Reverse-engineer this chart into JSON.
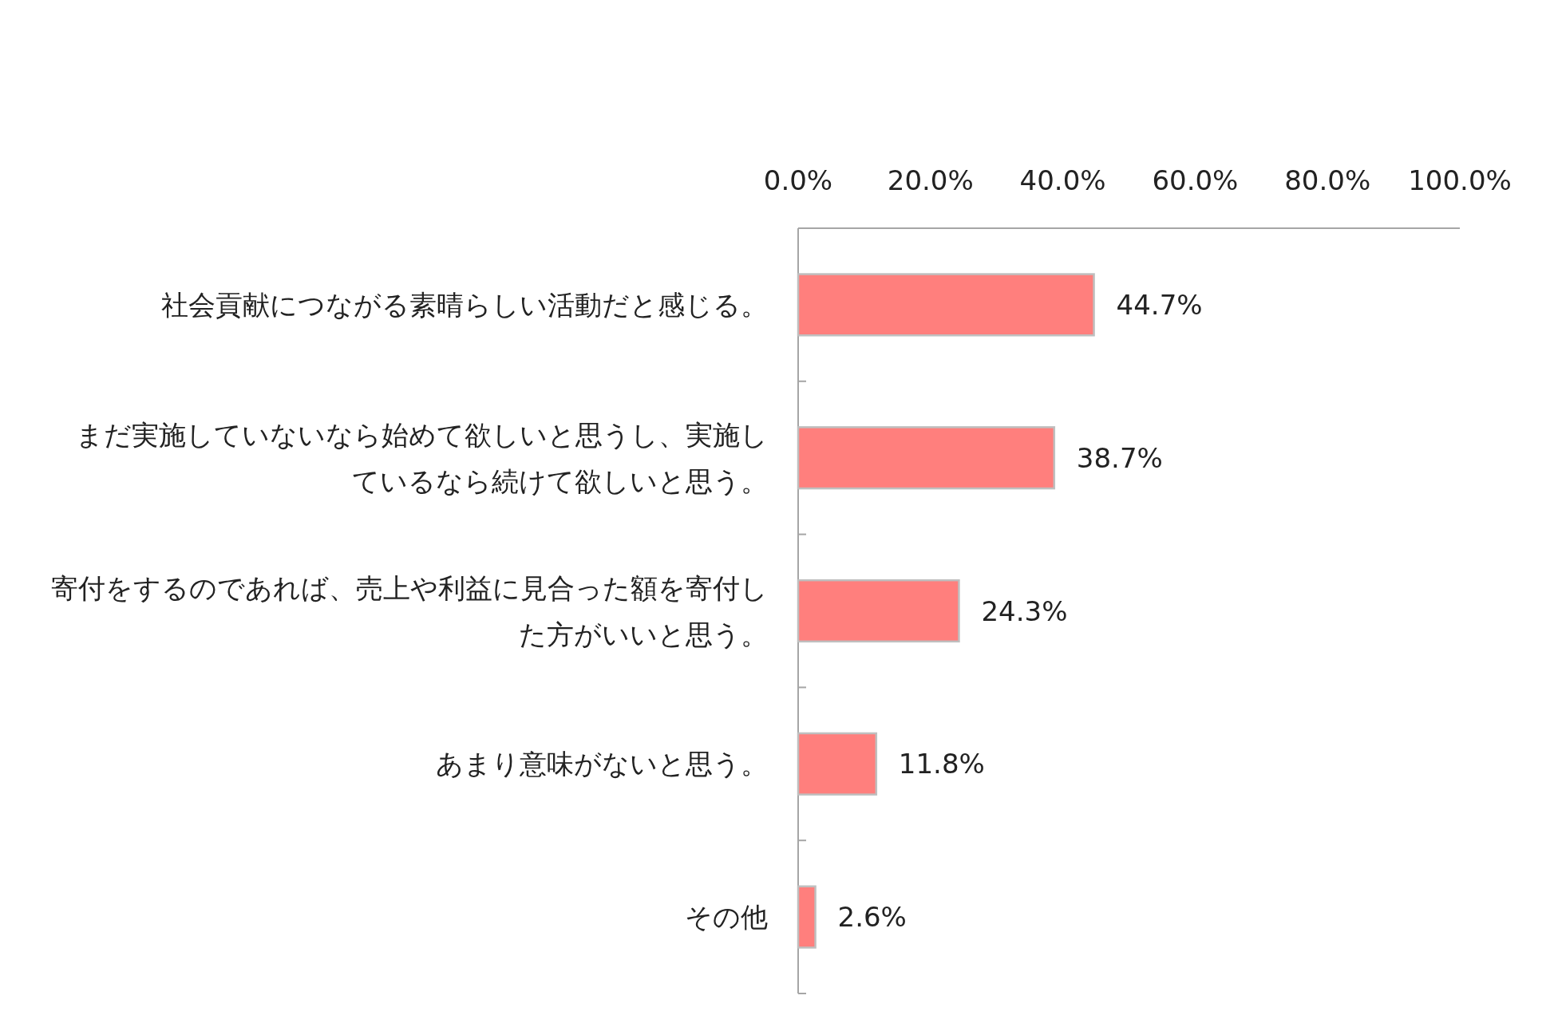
{
  "chart_data": {
    "type": "bar",
    "orientation": "horizontal",
    "categories": [
      "社会貢献につながる素晴らしい活動だと感じる。",
      "まだ実施していないなら始めて欲しいと思うし、実施しているなら続けて欲しいと思う。",
      "寄付をするのであれば、売上や利益に見合った額を寄付した方がいいと思う。",
      "あまり意味がないと思う。",
      "その他"
    ],
    "values": [
      44.7,
      38.7,
      24.3,
      11.8,
      2.6
    ],
    "value_labels": [
      "44.7%",
      "38.7%",
      "24.3%",
      "11.8%",
      "2.6%"
    ],
    "color": "#ff7f7d",
    "xlim": [
      0,
      100
    ],
    "xticks": [
      {
        "value": 0,
        "label": "0.0%"
      },
      {
        "value": 20,
        "label": "20.0%"
      },
      {
        "value": 40,
        "label": "40.0%"
      },
      {
        "value": 60,
        "label": "60.0%"
      },
      {
        "value": 80,
        "label": "80.0%"
      },
      {
        "value": 100,
        "label": "100.0%"
      }
    ],
    "grid": false
  }
}
